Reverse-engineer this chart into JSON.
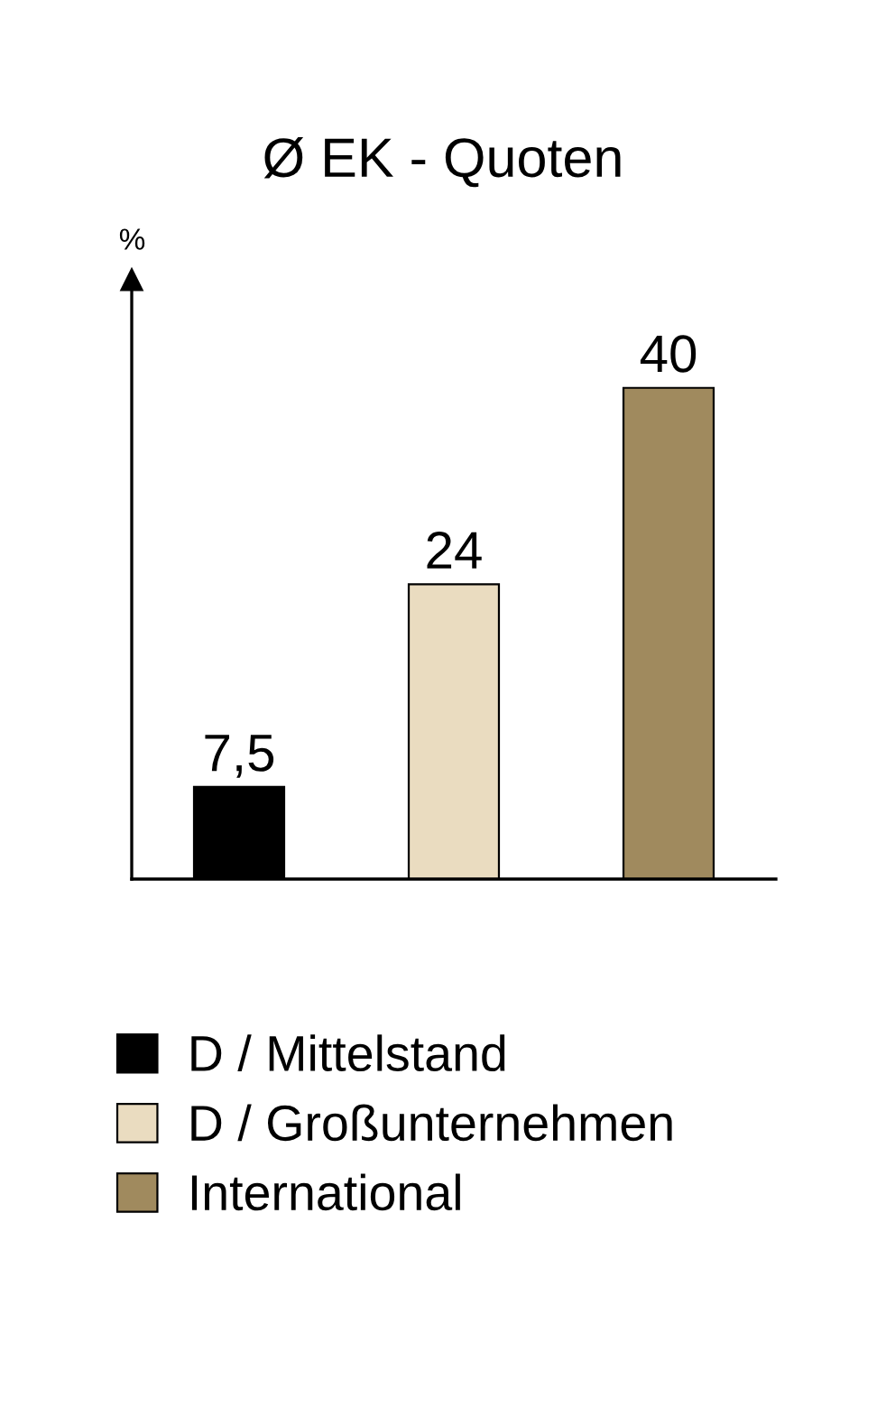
{
  "chart_data": {
    "type": "bar",
    "title": "Ø EK - Quoten",
    "annotations": [
      "%"
    ],
    "categories": [
      null,
      null,
      null
    ],
    "stacked": true,
    "series": [
      {
        "name": "D / Mittelstand",
        "color": "#000000",
        "values": [
          7.5,
          null,
          null
        ],
        "value_labels": [
          "7,5",
          null,
          null
        ]
      },
      {
        "name": "D / Großunternehmen",
        "color": "#eadcc0",
        "values": [
          null,
          24,
          null
        ],
        "value_labels": [
          null,
          "24",
          null
        ]
      },
      {
        "name": "International",
        "color": "#a08a5e",
        "values": [
          null,
          null,
          40
        ],
        "value_labels": [
          null,
          null,
          "40"
        ]
      }
    ],
    "legend": "bottom",
    "tick_labels": false,
    "grid": false
  }
}
